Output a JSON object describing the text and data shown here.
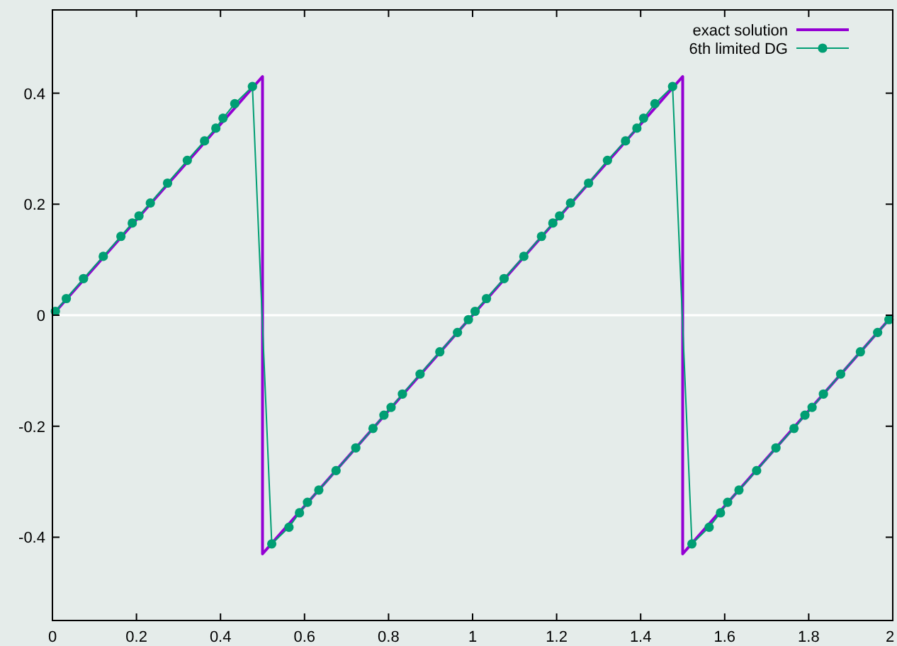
{
  "chart_data": {
    "type": "line",
    "xlim": [
      0,
      2
    ],
    "xticks": [
      0,
      0.2,
      0.4,
      0.6,
      0.8,
      1,
      1.2,
      1.4,
      1.6,
      1.8,
      2
    ],
    "ylim": [
      -0.55,
      0.55
    ],
    "yticks": [
      -0.4,
      -0.2,
      0,
      0.2,
      0.4
    ],
    "grid": false,
    "legend": "top right",
    "ref_lines": [
      {
        "axis": "y",
        "value": 0,
        "color": "#ffffff"
      }
    ],
    "series": [
      {
        "name": "exact solution",
        "color": "#9400d3",
        "marker": "none",
        "x": [
          0,
          0.5,
          0.5,
          1.5,
          1.5,
          2
        ],
        "values": [
          0,
          0.43,
          -0.43,
          0.43,
          -0.43,
          0
        ]
      },
      {
        "name": "6th limited DG",
        "color": "#009e73",
        "marker": "circle",
        "x": [
          0.007,
          0.033,
          0.074,
          0.121,
          0.163,
          0.19,
          0.206,
          0.233,
          0.274,
          0.321,
          0.362,
          0.389,
          0.406,
          0.434,
          0.476,
          0.522,
          0.563,
          0.588,
          0.607,
          0.634,
          0.675,
          0.722,
          0.763,
          0.789,
          0.806,
          0.833,
          0.875,
          0.922,
          0.964,
          0.99,
          1.006,
          1.033,
          1.075,
          1.122,
          1.164,
          1.191,
          1.207,
          1.233,
          1.276,
          1.321,
          1.364,
          1.391,
          1.407,
          1.434,
          1.476,
          1.522,
          1.563,
          1.59,
          1.607,
          1.634,
          1.676,
          1.722,
          1.765,
          1.791,
          1.808,
          1.835,
          1.876,
          1.923,
          1.964,
          1.991
        ],
        "values": [
          0.007,
          0.03,
          0.066,
          0.106,
          0.142,
          0.166,
          0.179,
          0.202,
          0.238,
          0.279,
          0.314,
          0.337,
          0.355,
          0.381,
          0.412,
          -0.412,
          -0.382,
          -0.356,
          -0.337,
          -0.315,
          -0.28,
          -0.239,
          -0.204,
          -0.18,
          -0.166,
          -0.142,
          -0.106,
          -0.066,
          -0.031,
          -0.008,
          0.007,
          0.03,
          0.066,
          0.106,
          0.142,
          0.166,
          0.179,
          0.202,
          0.238,
          0.279,
          0.314,
          0.337,
          0.355,
          0.381,
          0.412,
          -0.412,
          -0.382,
          -0.356,
          -0.337,
          -0.315,
          -0.28,
          -0.239,
          -0.204,
          -0.18,
          -0.166,
          -0.142,
          -0.106,
          -0.066,
          -0.031,
          -0.008
        ]
      }
    ]
  }
}
